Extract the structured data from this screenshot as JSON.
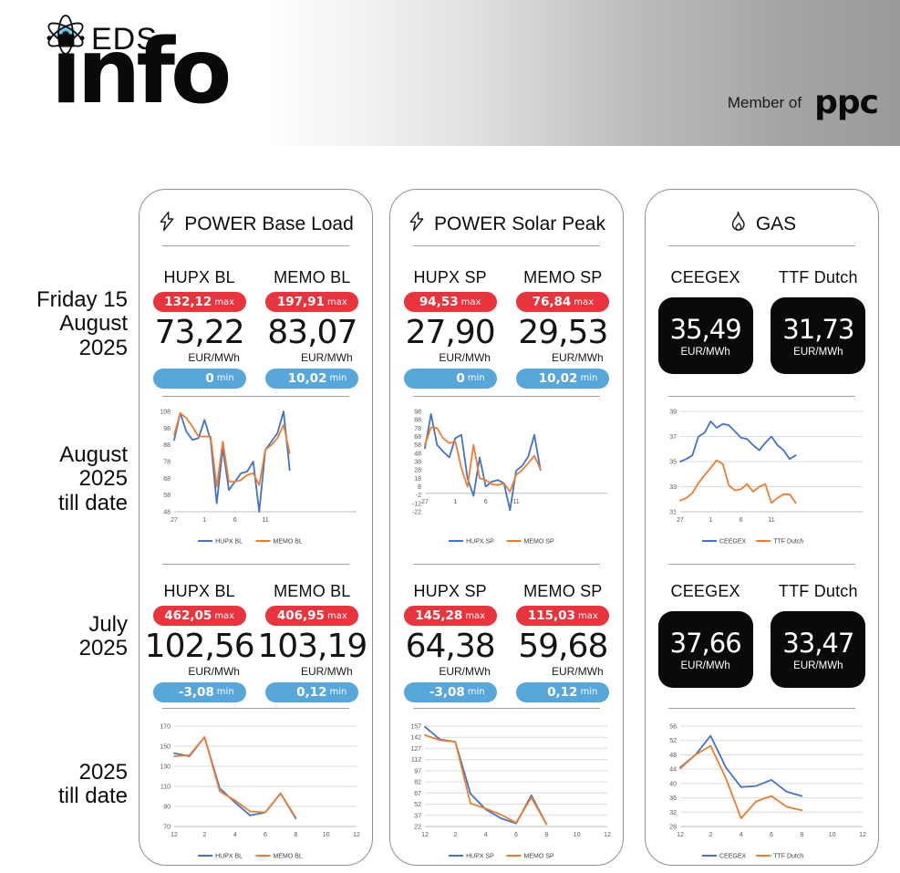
{
  "header": {
    "logo_top": "EDS",
    "logo_main": "info",
    "member_of": "Member of",
    "member_brand": "ppc"
  },
  "row_labels": {
    "day": "Friday 15\nAugust\n2025",
    "august": "August\n2025\ntill date",
    "july": "July\n2025",
    "ytd": "2025\ntill date"
  },
  "labels": {
    "max": "max",
    "min": "min"
  },
  "colors": {
    "badge_red": "#e8353d",
    "badge_blue": "#58a7db",
    "line_blue": "#4472c4",
    "line_orange": "#ed7d31",
    "gas_card": "#0a0a0a"
  },
  "columns": [
    {
      "title": "POWER Base Load",
      "icon": "lightning-icon",
      "day": {
        "markets": [
          {
            "name": "HUPX BL",
            "max": "132,12",
            "value": "73,22",
            "unit": "EUR/MWh",
            "min": "0"
          },
          {
            "name": "MEMO BL",
            "max": "197,91",
            "value": "83,07",
            "unit": "EUR/MWh",
            "min": "10,02"
          }
        ]
      },
      "july": {
        "markets": [
          {
            "name": "HUPX BL",
            "max": "462,05",
            "value": "102,56",
            "unit": "EUR/MWh",
            "min": "-3,08"
          },
          {
            "name": "MEMO BL",
            "max": "406,95",
            "value": "103,19",
            "unit": "EUR/MWh",
            "min": "0,12"
          }
        ]
      }
    },
    {
      "title": "POWER Solar Peak",
      "icon": "lightning-icon",
      "day": {
        "markets": [
          {
            "name": "HUPX SP",
            "max": "94,53",
            "value": "27,90",
            "unit": "EUR/MWh",
            "min": "0"
          },
          {
            "name": "MEMO SP",
            "max": "76,84",
            "value": "29,53",
            "unit": "EUR/MWh",
            "min": "10,02"
          }
        ]
      },
      "july": {
        "markets": [
          {
            "name": "HUPX SP",
            "max": "145,28",
            "value": "64,38",
            "unit": "EUR/MWh",
            "min": "-3,08"
          },
          {
            "name": "MEMO SP",
            "max": "115,03",
            "value": "59,68",
            "unit": "EUR/MWh",
            "min": "0,12"
          }
        ]
      }
    },
    {
      "title": "GAS",
      "icon": "flame-icon",
      "day": {
        "markets": [
          {
            "name": "CEEGEX",
            "value": "35,49",
            "unit": "EUR/MWh"
          },
          {
            "name": "TTF Dutch",
            "value": "31,73",
            "unit": "EUR/MWh"
          }
        ]
      },
      "july": {
        "markets": [
          {
            "name": "CEEGEX",
            "value": "37,66",
            "unit": "EUR/MWh"
          },
          {
            "name": "TTF Dutch",
            "value": "33,47",
            "unit": "EUR/MWh"
          }
        ]
      }
    }
  ],
  "chart_data": [
    {
      "type": "line",
      "period": "August 2025 till date",
      "legend_position": "bottom",
      "grid": false,
      "ylim": [
        48,
        108
      ],
      "yticks": [
        108,
        98,
        88,
        78,
        68,
        58,
        48
      ],
      "x_ticks": [
        {
          "i": 0,
          "label": "27"
        },
        {
          "i": 5,
          "label": "1"
        },
        {
          "i": 10,
          "label": "6"
        },
        {
          "i": 15,
          "label": "11"
        }
      ],
      "total_span": 30,
      "series": [
        {
          "name": "HUPX BL",
          "color": "#4472c4",
          "values": [
            91,
            107,
            96,
            91,
            92,
            103,
            91,
            53,
            86,
            61,
            66,
            71,
            72,
            78,
            48,
            85,
            90,
            95,
            108,
            73
          ]
        },
        {
          "name": "MEMO BL",
          "color": "#ed7d31",
          "values": [
            94,
            107,
            104,
            99,
            93,
            93,
            93,
            63,
            90,
            66,
            66,
            67,
            70,
            71,
            64,
            85,
            88,
            92,
            100,
            83
          ]
        }
      ]
    },
    {
      "type": "line",
      "period": "2025 till date",
      "legend_position": "bottom",
      "grid": true,
      "ylim": [
        70,
        170
      ],
      "yticks": [
        170,
        150,
        130,
        110,
        90,
        70
      ],
      "x_ticks": [
        {
          "i": 0,
          "label": "12"
        },
        {
          "i": 2,
          "label": "2"
        },
        {
          "i": 4,
          "label": "4"
        },
        {
          "i": 6,
          "label": "6"
        },
        {
          "i": 8,
          "label": "8"
        },
        {
          "i": 10,
          "label": "10"
        },
        {
          "i": 12,
          "label": "12"
        }
      ],
      "total_span": 12,
      "series": [
        {
          "name": "HUPX BL",
          "color": "#4472c4",
          "values": [
            143,
            140,
            159,
            108,
            94,
            81,
            84,
            103,
            78
          ]
        },
        {
          "name": "MEMO BL",
          "color": "#ed7d31",
          "values": [
            140,
            141,
            159,
            105,
            96,
            85,
            84,
            103,
            79
          ]
        }
      ]
    },
    {
      "type": "line",
      "period": "August 2025 till date",
      "legend_position": "bottom",
      "grid": false,
      "axis_y": 0,
      "ylim": [
        -22,
        98
      ],
      "yticks": [
        98,
        88,
        78,
        68,
        58,
        48,
        38,
        28,
        18,
        8,
        -2,
        -12,
        -22
      ],
      "x_ticks": [
        {
          "i": 0,
          "label": "27"
        },
        {
          "i": 5,
          "label": "1"
        },
        {
          "i": 10,
          "label": "6"
        },
        {
          "i": 15,
          "label": "11"
        }
      ],
      "total_span": 30,
      "series": [
        {
          "name": "HUPX SP",
          "color": "#4472c4",
          "values": [
            54,
            95,
            58,
            50,
            43,
            66,
            70,
            18,
            -3,
            43,
            8,
            14,
            16,
            12,
            -20,
            27,
            33,
            44,
            70,
            28
          ]
        },
        {
          "name": "MEMO SP",
          "color": "#ed7d31",
          "values": [
            58,
            79,
            78,
            66,
            60,
            62,
            30,
            8,
            58,
            18,
            16,
            11,
            10,
            12,
            2,
            22,
            28,
            36,
            45,
            29
          ]
        }
      ]
    },
    {
      "type": "line",
      "period": "2025 till date",
      "legend_position": "bottom",
      "grid": true,
      "ylim": [
        22,
        157
      ],
      "yticks": [
        157,
        142,
        127,
        112,
        97,
        82,
        67,
        52,
        37,
        22
      ],
      "x_ticks": [
        {
          "i": 0,
          "label": "12"
        },
        {
          "i": 2,
          "label": "2"
        },
        {
          "i": 4,
          "label": "4"
        },
        {
          "i": 6,
          "label": "6"
        },
        {
          "i": 8,
          "label": "8"
        },
        {
          "i": 10,
          "label": "10"
        },
        {
          "i": 12,
          "label": "12"
        }
      ],
      "total_span": 12,
      "series": [
        {
          "name": "HUPX SP",
          "color": "#4472c4",
          "values": [
            156,
            139,
            136,
            66,
            45,
            33,
            26,
            64,
            25
          ]
        },
        {
          "name": "MEMO SP",
          "color": "#ed7d31",
          "values": [
            145,
            138,
            136,
            53,
            46,
            38,
            27,
            61,
            25
          ]
        }
      ]
    },
    {
      "type": "line",
      "period": "August 2025 till date",
      "legend_position": "bottom",
      "grid": true,
      "ylim": [
        31,
        39
      ],
      "yticks": [
        39,
        37,
        35,
        33,
        31
      ],
      "x_ticks": [
        {
          "i": 0,
          "label": "27"
        },
        {
          "i": 5,
          "label": "1"
        },
        {
          "i": 10,
          "label": "6"
        },
        {
          "i": 15,
          "label": "11"
        }
      ],
      "total_span": 30,
      "series": [
        {
          "name": "CEEGEX",
          "color": "#4472c4",
          "values": [
            35.0,
            35.2,
            35.5,
            37.0,
            37.3,
            38.2,
            37.7,
            38.0,
            37.9,
            37.4,
            36.9,
            36.8,
            36.3,
            35.9,
            36.5,
            37.0,
            36.3,
            35.9,
            35.2,
            35.5
          ]
        },
        {
          "name": "TTF Dutch",
          "color": "#ed7d31",
          "values": [
            31.9,
            32.1,
            32.5,
            33.3,
            33.9,
            34.5,
            35.1,
            34.8,
            33.1,
            32.7,
            32.8,
            33.2,
            32.6,
            33.0,
            33.2,
            31.7,
            32.1,
            32.4,
            32.4,
            31.7
          ]
        }
      ]
    },
    {
      "type": "line",
      "period": "2025 till date",
      "legend_position": "bottom",
      "grid": true,
      "ylim": [
        28,
        56
      ],
      "yticks": [
        56,
        52,
        48,
        44,
        40,
        36,
        32,
        28
      ],
      "x_ticks": [
        {
          "i": 0,
          "label": "12"
        },
        {
          "i": 2,
          "label": "2"
        },
        {
          "i": 4,
          "label": "4"
        },
        {
          "i": 6,
          "label": "6"
        },
        {
          "i": 8,
          "label": "8"
        },
        {
          "i": 10,
          "label": "10"
        },
        {
          "i": 12,
          "label": "12"
        }
      ],
      "total_span": 12,
      "series": [
        {
          "name": "CEEGEX",
          "color": "#4472c4",
          "values": [
            44.5,
            48,
            53.3,
            44.5,
            39,
            39.3,
            41,
            37.7,
            36.5
          ]
        },
        {
          "name": "TTF Dutch",
          "color": "#ed7d31",
          "values": [
            44.2,
            48,
            50.5,
            41.5,
            30.3,
            35,
            36.5,
            33.5,
            32.5
          ]
        }
      ]
    }
  ]
}
